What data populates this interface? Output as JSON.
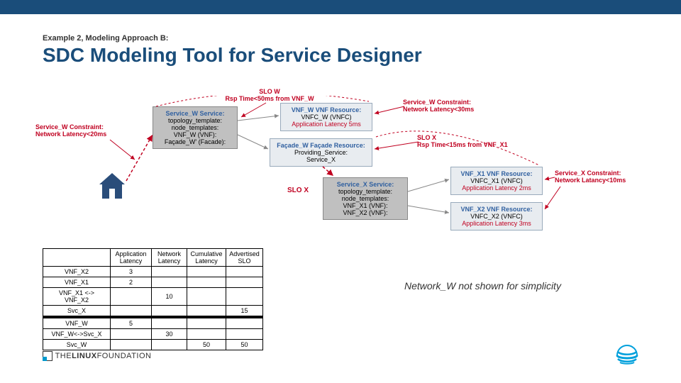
{
  "header": {
    "subtitle": "Example 2, Modeling Approach B:",
    "title": "SDC Modeling Tool for Service Designer"
  },
  "diagram": {
    "slo_w": {
      "line1": "SLO W",
      "line2": "Rsp Time<50ms from VNF_W",
      "color": "#c00020"
    },
    "constraint_w_left": {
      "line1": "Service_W Constraint:",
      "line2": "Network Latency<20ms",
      "color": "#c00020"
    },
    "constraint_w_right": {
      "line1": "Service_W Constraint:",
      "line2": "Network Latency<30ms",
      "color": "#c00020"
    },
    "slo_x": {
      "line1": "SLO X",
      "line2": "Rsp Time<15ms from VNF_X1",
      "color": "#c00020"
    },
    "constraint_x": {
      "line1": "Service_X Constraint:",
      "line2": "Network Latancy<10ms",
      "color": "#c00020"
    },
    "slo_x_label": "SLO X",
    "service_w": {
      "title": "Service_W Service:",
      "l1": "topology_template:",
      "l2": "node_templates:",
      "l3": "VNF_W (VNF):",
      "l4": "Façade_W' (Facade):"
    },
    "vnf_w": {
      "title": "VNF_W VNF Resource:",
      "l1": "VNFC_W (VNFC)",
      "l2": "Application Latency 5ms"
    },
    "facade_w": {
      "title": "Façade_W Façade Resource:",
      "l1": "Providing_Service:",
      "l2": "Service_X"
    },
    "service_x": {
      "title": "Service_X Service:",
      "l1": "topology_template:",
      "l2": "node_templates:",
      "l3": "VNF_X1 (VNF):",
      "l4": "VNF_X2 (VNF):"
    },
    "vnf_x1": {
      "title": "VNF_X1 VNF Resource:",
      "l1": "VNFC_X1 (VNFC)",
      "l2": "Application Latency 2ms"
    },
    "vnf_x2": {
      "title": "VNF_X2 VNF Resource:",
      "l1": "VNFC_X2 (VNFC)",
      "l2": "Application Latency 3ms"
    }
  },
  "table": {
    "headers": [
      "",
      "Application Latency",
      "Network Latency",
      "Cumulative Latency",
      "Advertised SLO"
    ],
    "rows": [
      [
        "VNF_X2",
        "3",
        "",
        "",
        ""
      ],
      [
        "VNF_X1",
        "2",
        "",
        "",
        ""
      ],
      [
        "VNF_X1 <-> VNF_X2",
        "",
        "10",
        "",
        ""
      ],
      [
        "Svc_X",
        "",
        "",
        "",
        "15"
      ]
    ],
    "rows2": [
      [
        "VNF_W",
        "5",
        "",
        "",
        ""
      ],
      [
        "VNF_W<->Svc_X",
        "",
        "30",
        "",
        ""
      ],
      [
        "Svc_W",
        "",
        "",
        "50",
        "50"
      ]
    ]
  },
  "note": "Network_W not shown for simplicity",
  "footer": {
    "linux": {
      "prefix": "THE",
      "main": "LINUX",
      "suffix": "FOUNDATION"
    }
  },
  "colors": {
    "topbar": "#1a4d7a",
    "title": "#1a4d7a",
    "red": "#c00020",
    "gray": "#c0c0c0",
    "light": "#e8ecf0",
    "att": "#00a0dc"
  }
}
